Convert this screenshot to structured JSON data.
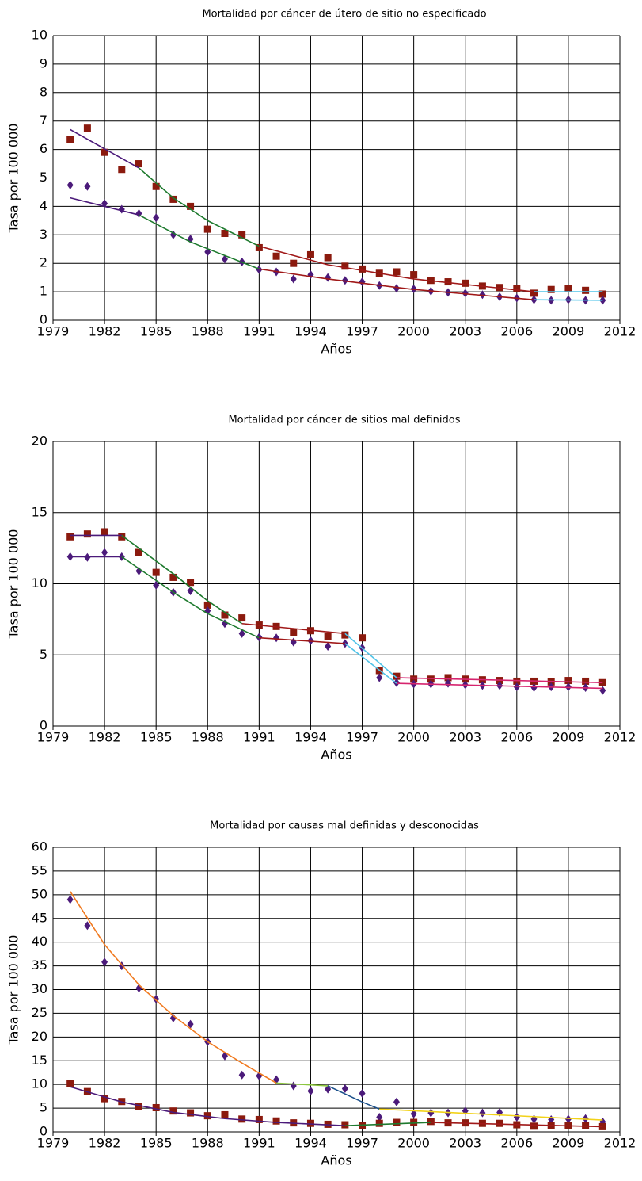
{
  "chart_data": [
    {
      "type": "scatter",
      "title": "Mortalidad por cáncer de útero de sitio no especificado",
      "x_label": "Años",
      "y_label": "Tasa por 100 000",
      "xlim": [
        1979,
        2012
      ],
      "xticks": [
        1979,
        1982,
        1985,
        1988,
        1991,
        1994,
        1997,
        2000,
        2003,
        2006,
        2009,
        2012
      ],
      "ylim": [
        0,
        10
      ],
      "yticks": [
        0,
        1,
        2,
        3,
        4,
        5,
        6,
        7,
        8,
        9,
        10
      ],
      "grid": true,
      "series": [
        {
          "marker": "square",
          "color": "#8b1a0e",
          "x": [
            1980,
            1981,
            1982,
            1983,
            1984,
            1985,
            1986,
            1987,
            1988,
            1989,
            1990,
            1991,
            1992,
            1993,
            1994,
            1995,
            1996,
            1997,
            1998,
            1999,
            2000,
            2001,
            2002,
            2003,
            2004,
            2005,
            2006,
            2007,
            2008,
            2009,
            2010,
            2011
          ],
          "values": [
            6.35,
            6.75,
            5.9,
            5.3,
            5.5,
            4.7,
            4.25,
            4.0,
            3.2,
            3.05,
            3.0,
            2.55,
            2.25,
            2.0,
            2.3,
            2.2,
            1.9,
            1.8,
            1.65,
            1.7,
            1.6,
            1.4,
            1.35,
            1.3,
            1.2,
            1.15,
            1.12,
            0.95,
            1.08,
            1.12,
            1.05,
            0.92
          ]
        },
        {
          "marker": "diamond",
          "color": "#4b1a7a",
          "x": [
            1980,
            1981,
            1982,
            1983,
            1984,
            1985,
            1986,
            1987,
            1988,
            1989,
            1990,
            1991,
            1992,
            1993,
            1994,
            1995,
            1996,
            1997,
            1998,
            1999,
            2000,
            2001,
            2002,
            2003,
            2004,
            2005,
            2006,
            2007,
            2008,
            2009,
            2010,
            2011
          ],
          "values": [
            4.75,
            4.7,
            4.1,
            3.9,
            3.75,
            3.6,
            3.0,
            2.85,
            2.4,
            2.15,
            2.05,
            1.78,
            1.7,
            1.45,
            1.6,
            1.5,
            1.4,
            1.35,
            1.22,
            1.12,
            1.1,
            1.02,
            0.98,
            0.95,
            0.9,
            0.82,
            0.78,
            0.72,
            0.7,
            0.72,
            0.7,
            0.7
          ]
        },
        {
          "color": "#4b1a7a",
          "x": [
            1980,
            1984
          ],
          "values": [
            6.7,
            5.35
          ]
        },
        {
          "color": "#1e7a2e",
          "x": [
            1984,
            1986,
            1988,
            1991
          ],
          "values": [
            5.35,
            4.3,
            3.5,
            2.6
          ]
        },
        {
          "color": "#a01818",
          "x": [
            1991,
            1995,
            2000,
            2007
          ],
          "values": [
            2.6,
            1.95,
            1.45,
            1.0
          ]
        },
        {
          "color": "#4fc3e8",
          "x": [
            2007,
            2011
          ],
          "values": [
            1.0,
            1.0
          ]
        },
        {
          "color": "#4b1a7a",
          "x": [
            1980,
            1984
          ],
          "values": [
            4.3,
            3.7
          ]
        },
        {
          "color": "#1e7a2e",
          "x": [
            1984,
            1987,
            1991
          ],
          "values": [
            3.7,
            2.75,
            1.8
          ]
        },
        {
          "color": "#a01818",
          "x": [
            1991,
            1995,
            2000,
            2007
          ],
          "values": [
            1.8,
            1.45,
            1.08,
            0.72
          ]
        },
        {
          "color": "#4fc3e8",
          "x": [
            2007,
            2011
          ],
          "values": [
            0.72,
            0.7
          ]
        }
      ]
    },
    {
      "type": "scatter",
      "title": "Mortalidad por cáncer de sitios mal definidos",
      "x_label": "Años",
      "y_label": "Tasa por 100 000",
      "xlim": [
        1979,
        2012
      ],
      "xticks": [
        1979,
        1982,
        1985,
        1988,
        1991,
        1994,
        1997,
        2000,
        2003,
        2006,
        2009,
        2012
      ],
      "ylim": [
        0,
        20
      ],
      "yticks": [
        0,
        5,
        10,
        15,
        20
      ],
      "grid": true,
      "series": [
        {
          "marker": "square",
          "color": "#8b1a0e",
          "x": [
            1980,
            1981,
            1982,
            1983,
            1984,
            1985,
            1986,
            1987,
            1988,
            1989,
            1990,
            1991,
            1992,
            1993,
            1994,
            1995,
            1996,
            1997,
            1998,
            1999,
            2000,
            2001,
            2002,
            2003,
            2004,
            2005,
            2006,
            2007,
            2008,
            2009,
            2010,
            2011
          ],
          "values": [
            13.3,
            13.5,
            13.65,
            13.3,
            12.2,
            10.8,
            10.45,
            10.1,
            8.5,
            7.8,
            7.6,
            7.1,
            7.0,
            6.6,
            6.7,
            6.3,
            6.4,
            6.2,
            3.9,
            3.5,
            3.3,
            3.3,
            3.4,
            3.3,
            3.25,
            3.2,
            3.15,
            3.15,
            3.1,
            3.2,
            3.15,
            3.05
          ]
        },
        {
          "marker": "diamond",
          "color": "#4b1a7a",
          "x": [
            1980,
            1981,
            1982,
            1983,
            1984,
            1985,
            1986,
            1987,
            1988,
            1989,
            1990,
            1991,
            1992,
            1993,
            1994,
            1995,
            1996,
            1997,
            1998,
            1999,
            2000,
            2001,
            2002,
            2003,
            2004,
            2005,
            2006,
            2007,
            2008,
            2009,
            2010,
            2011
          ],
          "values": [
            11.9,
            11.85,
            12.2,
            11.9,
            10.9,
            9.9,
            9.4,
            9.5,
            8.1,
            7.2,
            6.5,
            6.25,
            6.2,
            5.9,
            6.0,
            5.6,
            5.8,
            5.5,
            3.4,
            3.05,
            2.95,
            2.95,
            3.0,
            2.9,
            2.85,
            2.85,
            2.75,
            2.7,
            2.75,
            2.75,
            2.7,
            2.5
          ]
        },
        {
          "color": "#4b1a7a",
          "x": [
            1980,
            1983
          ],
          "values": [
            13.4,
            13.4
          ]
        },
        {
          "color": "#1e7a2e",
          "x": [
            1983,
            1986,
            1988,
            1990
          ],
          "values": [
            13.4,
            10.7,
            8.8,
            7.2
          ]
        },
        {
          "color": "#a01818",
          "x": [
            1990,
            1996
          ],
          "values": [
            7.2,
            6.5
          ]
        },
        {
          "color": "#4fc3e8",
          "x": [
            1996,
            1999
          ],
          "values": [
            6.5,
            3.4
          ]
        },
        {
          "color": "#d6246e",
          "x": [
            1999,
            2011
          ],
          "values": [
            3.4,
            3.05
          ]
        },
        {
          "color": "#4b1a7a",
          "x": [
            1980,
            1983
          ],
          "values": [
            11.9,
            11.9
          ]
        },
        {
          "color": "#1e7a2e",
          "x": [
            1983,
            1986,
            1988,
            1991
          ],
          "values": [
            11.9,
            9.4,
            7.9,
            6.2
          ]
        },
        {
          "color": "#a01818",
          "x": [
            1991,
            1996
          ],
          "values": [
            6.2,
            5.8
          ]
        },
        {
          "color": "#4fc3e8",
          "x": [
            1996,
            1999
          ],
          "values": [
            5.8,
            3.0
          ]
        },
        {
          "color": "#d6246e",
          "x": [
            1999,
            2011
          ],
          "values": [
            3.0,
            2.65
          ]
        }
      ]
    },
    {
      "type": "scatter",
      "title": "Mortalidad por causas mal definidas y desconocidas",
      "x_label": "Años",
      "y_label": "Tasa por 100 000",
      "xlim": [
        1979,
        2012
      ],
      "xticks": [
        1979,
        1982,
        1985,
        1988,
        1991,
        1994,
        1997,
        2000,
        2003,
        2006,
        2009,
        2012
      ],
      "ylim": [
        0,
        60
      ],
      "yticks": [
        0,
        5,
        10,
        15,
        20,
        25,
        30,
        35,
        40,
        45,
        50,
        55,
        60
      ],
      "grid": true,
      "series": [
        {
          "marker": "diamond",
          "color": "#4b1a7a",
          "x": [
            1980,
            1981,
            1982,
            1983,
            1984,
            1985,
            1986,
            1987,
            1988,
            1989,
            1990,
            1991,
            1992,
            1993,
            1994,
            1995,
            1996,
            1997,
            1998,
            1999,
            2000,
            2001,
            2002,
            2003,
            2004,
            2005,
            2006,
            2007,
            2008,
            2009,
            2010,
            2011
          ],
          "values": [
            49,
            43.5,
            35.8,
            35,
            30.3,
            28,
            24,
            22.7,
            19,
            16,
            12,
            11.8,
            11,
            9.7,
            8.6,
            9,
            9.1,
            8.1,
            3.1,
            6.3,
            3.8,
            4,
            4,
            4.4,
            4,
            4.1,
            3.1,
            2.7,
            2.6,
            2.7,
            2.8,
            2.1
          ]
        },
        {
          "marker": "square",
          "color": "#8b1a0e",
          "x": [
            1980,
            1981,
            1982,
            1983,
            1984,
            1985,
            1986,
            1987,
            1988,
            1989,
            1990,
            1991,
            1992,
            1993,
            1994,
            1995,
            1996,
            1997,
            1998,
            1999,
            2000,
            2001,
            2002,
            2003,
            2004,
            2005,
            2006,
            2007,
            2008,
            2009,
            2010,
            2011
          ],
          "values": [
            10.2,
            8.5,
            7,
            6.4,
            5.3,
            5.1,
            4.4,
            4,
            3.4,
            3.6,
            2.7,
            2.6,
            2.3,
            1.9,
            1.8,
            1.6,
            1.5,
            1.4,
            1.8,
            2.0,
            2.0,
            2.2,
            1.9,
            1.9,
            1.8,
            1.8,
            1.5,
            1.2,
            1.3,
            1.4,
            1.3,
            1.1
          ]
        },
        {
          "color": "#f07a20",
          "x": [
            1980,
            1982,
            1984,
            1986,
            1988,
            1990,
            1992
          ],
          "values": [
            50.7,
            39.5,
            31,
            24.5,
            19,
            14.5,
            10.3
          ]
        },
        {
          "color": "#8cc63f",
          "x": [
            1992,
            1995
          ],
          "values": [
            10.3,
            9.7
          ]
        },
        {
          "color": "#1a4f8a",
          "x": [
            1995,
            1997,
            1998
          ],
          "values": [
            9.7,
            6.3,
            4.8
          ]
        },
        {
          "color": "#f2d21a",
          "x": [
            1998,
            2011
          ],
          "values": [
            4.8,
            2.5
          ]
        },
        {
          "color": "#4b1a7a",
          "x": [
            1980,
            1983,
            1986,
            1989,
            1992,
            1996
          ],
          "values": [
            9.5,
            6.3,
            4.1,
            2.8,
            2.0,
            1.3
          ]
        },
        {
          "color": "#1e7a2e",
          "x": [
            1996,
            2001
          ],
          "values": [
            1.3,
            2.0
          ]
        },
        {
          "color": "#a01818",
          "x": [
            2001,
            2011
          ],
          "values": [
            2.0,
            1.1
          ]
        }
      ]
    }
  ]
}
